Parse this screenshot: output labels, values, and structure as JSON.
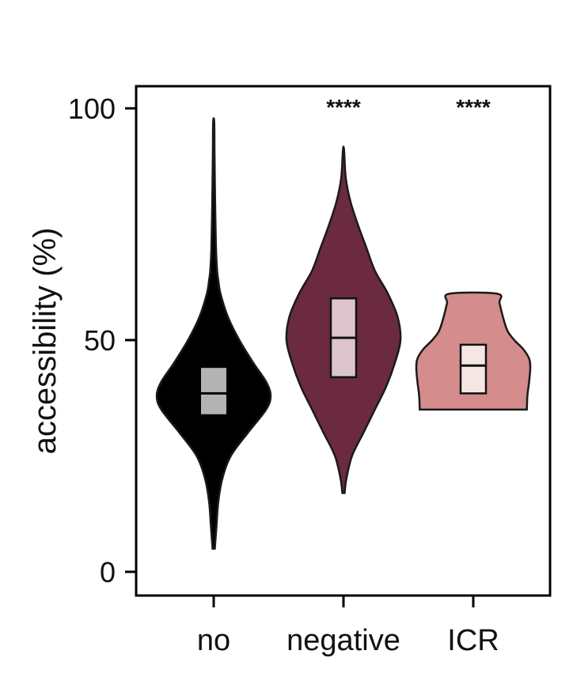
{
  "chart_data": {
    "type": "violin",
    "ylabel": "accessibility (%)",
    "xlabel": "",
    "ylim": [
      0,
      100
    ],
    "yticks": [
      0,
      50,
      100
    ],
    "categories": [
      "no",
      "negative",
      "ICR"
    ],
    "series": [
      {
        "category": "no",
        "color": "#000000",
        "min": 5,
        "max": 97,
        "q1": 34,
        "median": 38.5,
        "q3": 44,
        "significance": "",
        "density": [
          [
            5,
            0.02
          ],
          [
            10,
            0.05
          ],
          [
            15,
            0.08
          ],
          [
            20,
            0.15
          ],
          [
            25,
            0.3
          ],
          [
            30,
            0.6
          ],
          [
            35,
            0.92
          ],
          [
            38,
            1.0
          ],
          [
            41,
            0.92
          ],
          [
            45,
            0.7
          ],
          [
            50,
            0.45
          ],
          [
            55,
            0.25
          ],
          [
            60,
            0.12
          ],
          [
            63,
            0.08
          ],
          [
            65,
            0.06
          ],
          [
            70,
            0.04
          ],
          [
            80,
            0.025
          ],
          [
            90,
            0.015
          ],
          [
            97,
            0.01
          ]
        ]
      },
      {
        "category": "negative",
        "color": "#6b2a40",
        "min": 17,
        "max": 91,
        "q1": 42,
        "median": 50.5,
        "q3": 59,
        "significance": "****",
        "density": [
          [
            17,
            0.02
          ],
          [
            20,
            0.05
          ],
          [
            25,
            0.15
          ],
          [
            30,
            0.35
          ],
          [
            35,
            0.55
          ],
          [
            40,
            0.75
          ],
          [
            45,
            0.9
          ],
          [
            50,
            1.0
          ],
          [
            55,
            0.95
          ],
          [
            60,
            0.78
          ],
          [
            65,
            0.55
          ],
          [
            70,
            0.4
          ],
          [
            75,
            0.25
          ],
          [
            80,
            0.12
          ],
          [
            85,
            0.04
          ],
          [
            91,
            0.01
          ]
        ]
      },
      {
        "category": "ICR",
        "color": "#d48c8c",
        "min": 35,
        "max": 60,
        "q1": 38.5,
        "median": 44.5,
        "q3": 49,
        "significance": "****",
        "density": [
          [
            35,
            0.94
          ],
          [
            38,
            0.95
          ],
          [
            41,
            0.98
          ],
          [
            44,
            1.0
          ],
          [
            46,
            0.98
          ],
          [
            48,
            0.88
          ],
          [
            50,
            0.72
          ],
          [
            52,
            0.6
          ],
          [
            55,
            0.52
          ],
          [
            58,
            0.46
          ],
          [
            60,
            0.42
          ]
        ]
      }
    ]
  }
}
